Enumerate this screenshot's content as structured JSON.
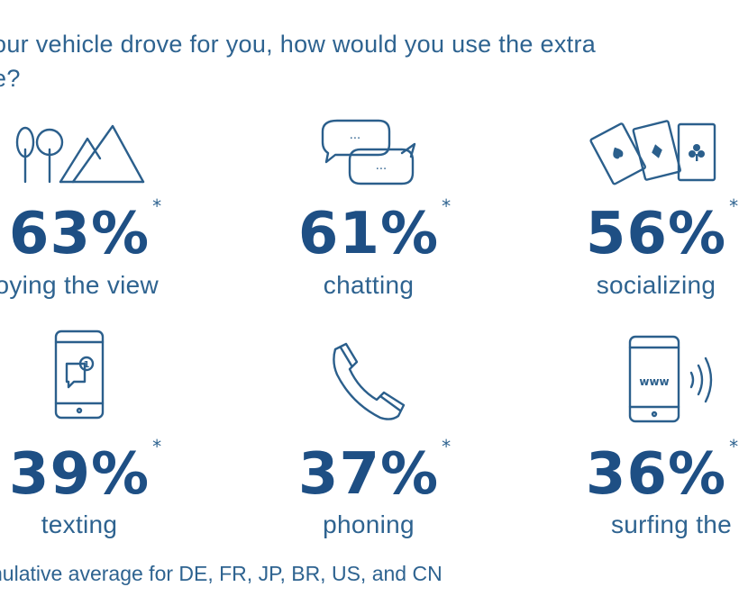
{
  "question": "our vehicle drove for you, how would you use the extra\ne?",
  "footnote": "nulative average for DE, FR, JP, BR, US, and CN",
  "asterisk": "*",
  "colors": {
    "text": "#2e6390",
    "percent": "#1e4f84",
    "icon_stroke": "#2b5f8c",
    "background": "#ffffff"
  },
  "stats": [
    {
      "percent": "63%",
      "label": "joying the view",
      "icon": "trees-mountains-icon"
    },
    {
      "percent": "61%",
      "label": "chatting",
      "icon": "speech-bubbles-icon"
    },
    {
      "percent": "56%",
      "label": "socializing",
      "icon": "playing-cards-icon"
    },
    {
      "percent": "39%",
      "label": "texting",
      "icon": "smartphone-message-icon"
    },
    {
      "percent": "37%",
      "label": "phoning",
      "icon": "telephone-handset-icon"
    },
    {
      "percent": "36%",
      "label": "surfing the we",
      "icon": "smartphone-www-icon"
    }
  ],
  "icon_text": {
    "chat_dots": "...",
    "www": "www",
    "notification": "1"
  }
}
